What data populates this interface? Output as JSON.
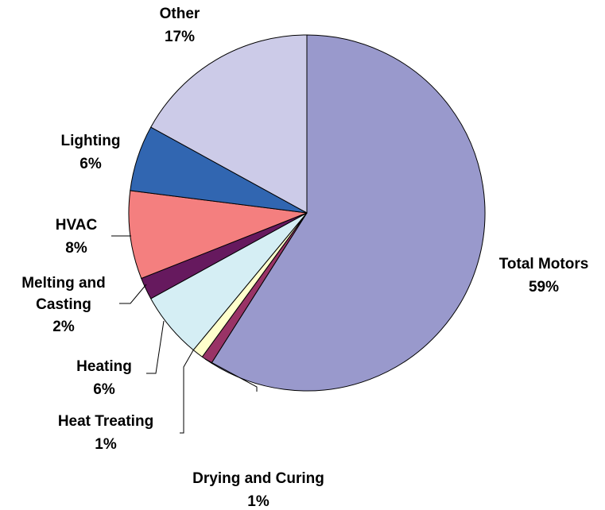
{
  "chart_data": {
    "type": "pie",
    "categories": [
      "Total Motors",
      "Drying and Curing",
      "Heat Treating",
      "Heating",
      "Melting and Casting",
      "HVAC",
      "Lighting",
      "Other"
    ],
    "values": [
      59,
      1,
      1,
      6,
      2,
      8,
      6,
      17
    ],
    "value_labels": [
      "59%",
      "1%",
      "1%",
      "6%",
      "2%",
      "8%",
      "6%",
      "17%"
    ],
    "colors": [
      "#9999cc",
      "#993366",
      "#ffffcc",
      "#d5eef4",
      "#66195e",
      "#f47f7f",
      "#3166b1",
      "#cccbe8"
    ]
  }
}
